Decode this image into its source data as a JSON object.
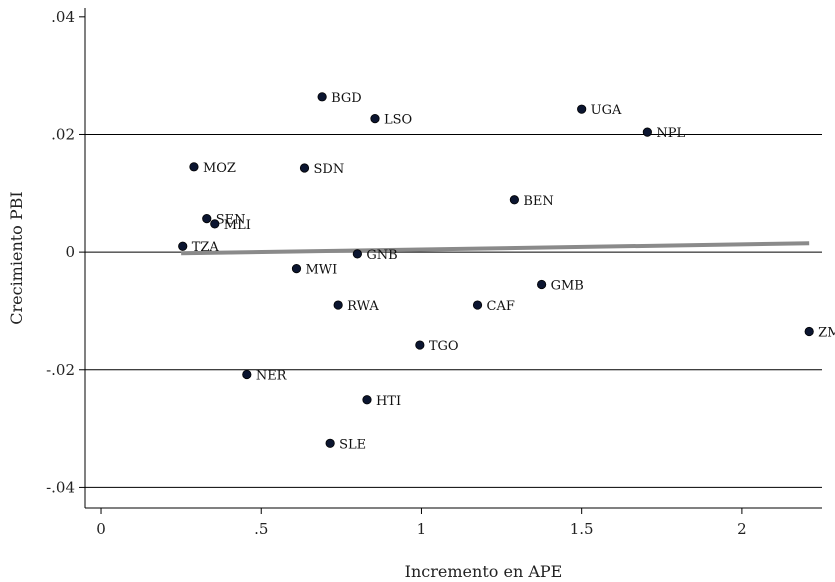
{
  "chart_data": {
    "type": "scatter",
    "xlabel": "Incremento en APE",
    "ylabel": "Crecimiento PBI",
    "xlim": [
      -0.05,
      2.25
    ],
    "ylim": [
      -0.0435,
      0.0415
    ],
    "x_ticks": [
      {
        "value": 0,
        "label": "0"
      },
      {
        "value": 0.5,
        "label": ".5"
      },
      {
        "value": 1,
        "label": "1"
      },
      {
        "value": 1.5,
        "label": "1.5"
      },
      {
        "value": 2,
        "label": "2"
      }
    ],
    "y_ticks": [
      {
        "value": 0.04,
        "label": ".04"
      },
      {
        "value": 0.02,
        "label": ".02"
      },
      {
        "value": 0,
        "label": "0"
      },
      {
        "value": -0.02,
        "label": "-.02"
      },
      {
        "value": -0.04,
        "label": "-.04"
      }
    ],
    "gridlines_y": [
      0.02,
      0,
      -0.02,
      -0.04
    ],
    "points": [
      {
        "label": "BGD",
        "x": 0.69,
        "y": 0.0264
      },
      {
        "label": "LSO",
        "x": 0.855,
        "y": 0.0227
      },
      {
        "label": "UGA",
        "x": 1.5,
        "y": 0.0243
      },
      {
        "label": "NPL",
        "x": 1.705,
        "y": 0.0204
      },
      {
        "label": "MOZ",
        "x": 0.29,
        "y": 0.0145
      },
      {
        "label": "SDN",
        "x": 0.635,
        "y": 0.0143
      },
      {
        "label": "BEN",
        "x": 1.29,
        "y": 0.0089
      },
      {
        "label": "SEN",
        "x": 0.33,
        "y": 0.0057
      },
      {
        "label": "MLI",
        "x": 0.355,
        "y": 0.0048
      },
      {
        "label": "TZA",
        "x": 0.255,
        "y": 0.001
      },
      {
        "label": "GNB",
        "x": 0.8,
        "y": -0.0003
      },
      {
        "label": "MWI",
        "x": 0.61,
        "y": -0.0028
      },
      {
        "label": "GMB",
        "x": 1.375,
        "y": -0.0055
      },
      {
        "label": "RWA",
        "x": 0.74,
        "y": -0.009
      },
      {
        "label": "CAF",
        "x": 1.175,
        "y": -0.009
      },
      {
        "label": "ZMB",
        "x": 2.21,
        "y": -0.0135
      },
      {
        "label": "TGO",
        "x": 0.995,
        "y": -0.0158
      },
      {
        "label": "NER",
        "x": 0.455,
        "y": -0.0208
      },
      {
        "label": "HTI",
        "x": 0.83,
        "y": -0.0251
      },
      {
        "label": "SLE",
        "x": 0.715,
        "y": -0.0325
      }
    ],
    "fit_line": {
      "x": [
        0.25,
        2.21
      ],
      "y": [
        -0.0002,
        0.0015
      ]
    },
    "colors": {
      "point": "#0b1530",
      "fit": "#8a8a8a",
      "axis": "#000000",
      "grid": "#000000"
    }
  }
}
